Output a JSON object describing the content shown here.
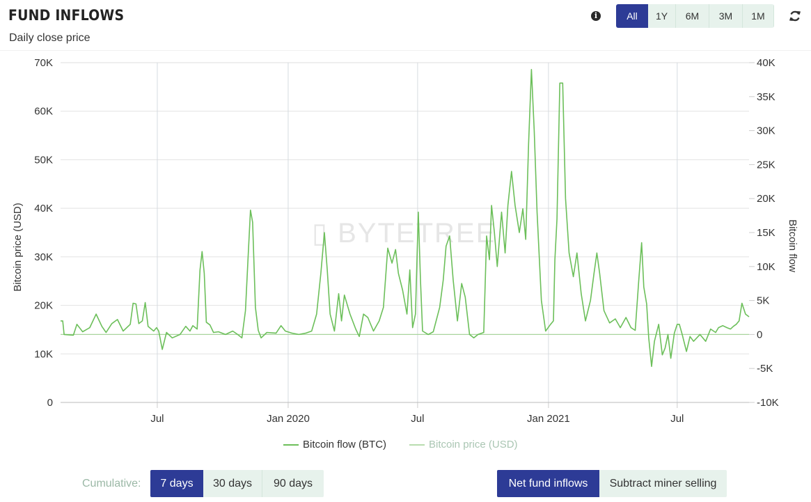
{
  "header": {
    "title": "FUND INFLOWS",
    "subtitle": "Daily close price",
    "info_glyph": "i",
    "range_buttons": [
      "All",
      "1Y",
      "6M",
      "3M",
      "1M"
    ],
    "range_active": "All"
  },
  "watermark": "▯ BYTETREE",
  "legend": {
    "flow_label": "Bitcoin flow (BTC)",
    "price_label": "Bitcoin price (USD)"
  },
  "bottom": {
    "cumulative_label": "Cumulative:",
    "cumulative_options": [
      "7 days",
      "30 days",
      "90 days"
    ],
    "cumulative_active": "7 days",
    "mode_options": [
      "Net fund inflows",
      "Subtract miner selling"
    ],
    "mode_active": "Net fund inflows"
  },
  "colors": {
    "flow_line": "#6cbf5a",
    "price_line": "#a8d59c",
    "grid": "#e2e2e2",
    "active_button": "#2d3b96",
    "button_bg": "#e7f2ec"
  },
  "chart_data": {
    "type": "line",
    "xlabel": "",
    "y_left_label": "Bitcoin price (USD)",
    "y_right_label": "Bitcoin flow",
    "y_left_ticks": [
      "0",
      "10K",
      "20K",
      "30K",
      "40K",
      "50K",
      "60K",
      "70K"
    ],
    "y_right_ticks": [
      "-10K",
      "-5K",
      "0",
      "5K",
      "10K",
      "15K",
      "20K",
      "25K",
      "30K",
      "35K",
      "40K"
    ],
    "y_left_range": [
      0,
      70000
    ],
    "y_right_range": [
      -10000,
      40000
    ],
    "x_range": [
      "2019-02-15",
      "2021-10-10"
    ],
    "x_ticks": [
      {
        "date": "2019-07-01",
        "label": "Jul"
      },
      {
        "date": "2020-01-01",
        "label": "Jan 2020"
      },
      {
        "date": "2020-07-01",
        "label": "Jul"
      },
      {
        "date": "2021-01-01",
        "label": "Jan 2021"
      },
      {
        "date": "2021-07-01",
        "label": "Jul"
      }
    ],
    "series": [
      {
        "name": "Bitcoin flow (BTC)",
        "axis": "right",
        "points": [
          [
            "2019-02-15",
            2000
          ],
          [
            "2019-02-18",
            2000
          ],
          [
            "2019-02-20",
            0
          ],
          [
            "2019-03-05",
            -100
          ],
          [
            "2019-03-10",
            1500
          ],
          [
            "2019-03-18",
            400
          ],
          [
            "2019-03-28",
            1000
          ],
          [
            "2019-04-06",
            3000
          ],
          [
            "2019-04-14",
            1200
          ],
          [
            "2019-04-20",
            300
          ],
          [
            "2019-04-28",
            1600
          ],
          [
            "2019-05-06",
            2200
          ],
          [
            "2019-05-14",
            500
          ],
          [
            "2019-05-24",
            1500
          ],
          [
            "2019-05-28",
            4600
          ],
          [
            "2019-06-01",
            4500
          ],
          [
            "2019-06-05",
            1600
          ],
          [
            "2019-06-10",
            2000
          ],
          [
            "2019-06-14",
            4700
          ],
          [
            "2019-06-18",
            1200
          ],
          [
            "2019-06-26",
            500
          ],
          [
            "2019-06-30",
            1000
          ],
          [
            "2019-07-03",
            500
          ],
          [
            "2019-07-08",
            -2200
          ],
          [
            "2019-07-14",
            300
          ],
          [
            "2019-07-22",
            -500
          ],
          [
            "2019-08-02",
            0
          ],
          [
            "2019-08-10",
            1200
          ],
          [
            "2019-08-16",
            500
          ],
          [
            "2019-08-20",
            1300
          ],
          [
            "2019-08-26",
            800
          ],
          [
            "2019-08-30",
            9500
          ],
          [
            "2019-09-02",
            12200
          ],
          [
            "2019-09-05",
            9000
          ],
          [
            "2019-09-08",
            1800
          ],
          [
            "2019-09-13",
            1400
          ],
          [
            "2019-09-18",
            300
          ],
          [
            "2019-09-25",
            400
          ],
          [
            "2019-10-05",
            0
          ],
          [
            "2019-10-15",
            500
          ],
          [
            "2019-10-22",
            0
          ],
          [
            "2019-10-28",
            -500
          ],
          [
            "2019-11-02",
            3500
          ],
          [
            "2019-11-06",
            12000
          ],
          [
            "2019-11-09",
            18300
          ],
          [
            "2019-11-12",
            16500
          ],
          [
            "2019-11-16",
            4000
          ],
          [
            "2019-11-20",
            600
          ],
          [
            "2019-11-24",
            -500
          ],
          [
            "2019-12-02",
            300
          ],
          [
            "2019-12-15",
            200
          ],
          [
            "2019-12-22",
            1300
          ],
          [
            "2019-12-28",
            500
          ],
          [
            "2020-01-06",
            200
          ],
          [
            "2020-01-16",
            0
          ],
          [
            "2020-01-26",
            200
          ],
          [
            "2020-02-03",
            500
          ],
          [
            "2020-02-10",
            3000
          ],
          [
            "2020-02-16",
            9000
          ],
          [
            "2020-02-21",
            15000
          ],
          [
            "2020-02-25",
            9500
          ],
          [
            "2020-02-29",
            3000
          ],
          [
            "2020-03-06",
            500
          ],
          [
            "2020-03-12",
            6000
          ],
          [
            "2020-03-16",
            2000
          ],
          [
            "2020-03-20",
            5800
          ],
          [
            "2020-03-28",
            3000
          ],
          [
            "2020-04-05",
            800
          ],
          [
            "2020-04-10",
            -300
          ],
          [
            "2020-04-16",
            3000
          ],
          [
            "2020-04-22",
            2500
          ],
          [
            "2020-04-30",
            500
          ],
          [
            "2020-05-08",
            2000
          ],
          [
            "2020-05-14",
            4000
          ],
          [
            "2020-05-20",
            12700
          ],
          [
            "2020-05-26",
            10500
          ],
          [
            "2020-05-31",
            12500
          ],
          [
            "2020-06-04",
            9000
          ],
          [
            "2020-06-10",
            6500
          ],
          [
            "2020-06-16",
            3000
          ],
          [
            "2020-06-20",
            9500
          ],
          [
            "2020-06-24",
            1000
          ],
          [
            "2020-06-28",
            3000
          ],
          [
            "2020-07-02",
            18000
          ],
          [
            "2020-07-05",
            8000
          ],
          [
            "2020-07-08",
            500
          ],
          [
            "2020-07-16",
            0
          ],
          [
            "2020-07-23",
            400
          ],
          [
            "2020-08-01",
            4000
          ],
          [
            "2020-08-06",
            8000
          ],
          [
            "2020-08-10",
            13000
          ],
          [
            "2020-08-15",
            14500
          ],
          [
            "2020-08-20",
            8000
          ],
          [
            "2020-08-26",
            2000
          ],
          [
            "2020-09-01",
            7500
          ],
          [
            "2020-09-06",
            5500
          ],
          [
            "2020-09-12",
            0
          ],
          [
            "2020-09-18",
            -500
          ],
          [
            "2020-09-24",
            0
          ],
          [
            "2020-10-02",
            300
          ],
          [
            "2020-10-06",
            14500
          ],
          [
            "2020-10-10",
            11000
          ],
          [
            "2020-10-13",
            19000
          ],
          [
            "2020-10-17",
            15000
          ],
          [
            "2020-10-21",
            10000
          ],
          [
            "2020-10-27",
            18000
          ],
          [
            "2020-11-01",
            12000
          ],
          [
            "2020-11-05",
            19000
          ],
          [
            "2020-11-10",
            24000
          ],
          [
            "2020-11-15",
            19000
          ],
          [
            "2020-11-21",
            15000
          ],
          [
            "2020-11-26",
            18500
          ],
          [
            "2020-11-30",
            14000
          ],
          [
            "2020-12-04",
            28000
          ],
          [
            "2020-12-08",
            39000
          ],
          [
            "2020-12-12",
            30000
          ],
          [
            "2020-12-16",
            18000
          ],
          [
            "2020-12-22",
            5000
          ],
          [
            "2020-12-28",
            500
          ],
          [
            "2021-01-04",
            1500
          ],
          [
            "2021-01-08",
            2000
          ],
          [
            "2021-01-10",
            11000
          ],
          [
            "2021-01-13",
            17000
          ],
          [
            "2021-01-17",
            37000
          ],
          [
            "2021-01-21",
            37000
          ],
          [
            "2021-01-25",
            20000
          ],
          [
            "2021-01-30",
            12000
          ],
          [
            "2021-02-05",
            8500
          ],
          [
            "2021-02-10",
            12000
          ],
          [
            "2021-02-16",
            6000
          ],
          [
            "2021-02-22",
            2000
          ],
          [
            "2021-03-01",
            5000
          ],
          [
            "2021-03-06",
            9000
          ],
          [
            "2021-03-10",
            12000
          ],
          [
            "2021-03-14",
            9000
          ],
          [
            "2021-03-20",
            3500
          ],
          [
            "2021-03-28",
            1700
          ],
          [
            "2021-04-05",
            2300
          ],
          [
            "2021-04-12",
            1000
          ],
          [
            "2021-04-20",
            2500
          ],
          [
            "2021-04-27",
            1000
          ],
          [
            "2021-05-03",
            600
          ],
          [
            "2021-05-08",
            8000
          ],
          [
            "2021-05-12",
            13500
          ],
          [
            "2021-05-15",
            7000
          ],
          [
            "2021-05-19",
            4500
          ],
          [
            "2021-05-22",
            -500
          ],
          [
            "2021-05-26",
            -4700
          ],
          [
            "2021-05-30",
            -1000
          ],
          [
            "2021-06-05",
            1500
          ],
          [
            "2021-06-10",
            -3000
          ],
          [
            "2021-06-14",
            -2000
          ],
          [
            "2021-06-18",
            0
          ],
          [
            "2021-06-22",
            -3500
          ],
          [
            "2021-06-27",
            200
          ],
          [
            "2021-07-01",
            1500
          ],
          [
            "2021-07-04",
            1500
          ],
          [
            "2021-07-08",
            0
          ],
          [
            "2021-07-14",
            -2500
          ],
          [
            "2021-07-19",
            -300
          ],
          [
            "2021-07-24",
            -1000
          ],
          [
            "2021-08-02",
            0
          ],
          [
            "2021-08-10",
            -1000
          ],
          [
            "2021-08-17",
            800
          ],
          [
            "2021-08-24",
            300
          ],
          [
            "2021-08-28",
            1000
          ],
          [
            "2021-09-03",
            1300
          ],
          [
            "2021-09-09",
            1000
          ],
          [
            "2021-09-14",
            800
          ],
          [
            "2021-09-18",
            1200
          ],
          [
            "2021-09-22",
            1500
          ],
          [
            "2021-09-26",
            2000
          ],
          [
            "2021-09-30",
            4600
          ],
          [
            "2021-10-05",
            3000
          ],
          [
            "2021-10-10",
            2600
          ]
        ]
      },
      {
        "name": "Bitcoin price (USD)",
        "axis": "left",
        "points": []
      }
    ]
  }
}
